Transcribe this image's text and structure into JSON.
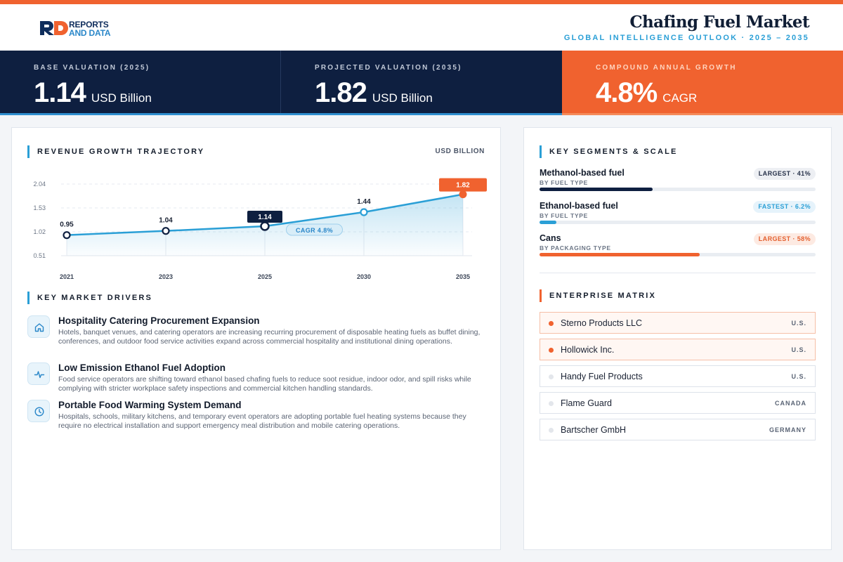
{
  "brand": {
    "line1": "REPORTS",
    "line2": "AND DATA"
  },
  "header": {
    "title": "Chafing Fuel Market",
    "subtitle": "GLOBAL INTELLIGENCE OUTLOOK · 2025 – 2035"
  },
  "kpis": [
    {
      "label": "BASE VALUATION (2025)",
      "value": "1.14",
      "unit": "USD Billion"
    },
    {
      "label": "PROJECTED VALUATION (2035)",
      "value": "1.82",
      "unit": "USD Billion"
    },
    {
      "label": "COMPOUND ANNUAL GROWTH",
      "value": "4.8%",
      "unit": "CAGR"
    }
  ],
  "colors": {
    "accent_orange": "#f0622f",
    "accent_blue": "#2a9fd6",
    "navy": "#0e1f40"
  },
  "revenue": {
    "title": "REVENUE GROWTH TRAJECTORY",
    "unit": "USD BILLION"
  },
  "chart_data": {
    "type": "area",
    "title": "REVENUE GROWTH TRAJECTORY",
    "ylabel": "USD BILLION",
    "x": [
      "2021",
      "2023",
      "2025",
      "2030",
      "2035"
    ],
    "series": [
      {
        "values": [
          0.95,
          1.04,
          1.14,
          1.44,
          1.82
        ]
      }
    ],
    "labels": [
      "0.95",
      "1.04",
      "1.14",
      "1.44",
      "1.82"
    ],
    "yticks": [
      0.51,
      1.02,
      1.53,
      2.04
    ],
    "ytick_labels": [
      "0.51",
      "1.02",
      "1.53",
      "2.04"
    ],
    "ylim": [
      0.51,
      2.04
    ],
    "grid": true,
    "highlight": {
      "base_year": "2025",
      "forecast_year": "2035"
    },
    "annotation": "CAGR 4.8%"
  },
  "drivers": {
    "title": "KEY MARKET DRIVERS",
    "items": [
      {
        "icon": "home-icon",
        "title": "Hospitality Catering Procurement Expansion",
        "body": "Hotels, banquet venues, and catering operators are increasing recurring procurement of disposable heating fuels as buffet dining, conferences, and outdoor food service activities expand across commercial hospitality and institutional dining operations."
      },
      {
        "icon": "pulse-icon",
        "title": "Low Emission Ethanol Fuel Adoption",
        "body": "Food service operators are shifting toward ethanol based chafing fuels to reduce soot residue, indoor odor, and spill risks while complying with stricter workplace safety inspections and commercial kitchen handling standards."
      },
      {
        "icon": "clock-icon",
        "title": "Portable Food Warming System Demand",
        "body": "Hospitals, schools, military kitchens, and temporary event operators are adopting portable fuel heating systems because they require no electrical installation and support emergency meal distribution and mobile catering operations."
      }
    ]
  },
  "segments": {
    "title": "KEY SEGMENTS & SCALE",
    "items": [
      {
        "name": "Methanol-based fuel",
        "type": "BY FUEL TYPE",
        "badge": "LARGEST · 41%",
        "share": 0.41,
        "color": "#0e1f40"
      },
      {
        "name": "Ethanol-based fuel",
        "type": "BY FUEL TYPE",
        "badge": "FASTEST · 6.2%",
        "share": 0.062,
        "color": "#2a9fd6"
      },
      {
        "name": "Cans",
        "type": "BY PACKAGING TYPE",
        "badge": "LARGEST · 58%",
        "share": 0.58,
        "color": "#f0622f"
      }
    ]
  },
  "enterprise": {
    "title": "ENTERPRISE MATRIX",
    "items": [
      {
        "name": "Sterno Products LLC",
        "country": "U.S."
      },
      {
        "name": "Hollowick Inc.",
        "country": "U.S."
      },
      {
        "name": "Handy Fuel Products",
        "country": "U.S."
      },
      {
        "name": "Flame Guard",
        "country": "CANADA"
      },
      {
        "name": "Bartscher GmbH",
        "country": "GERMANY"
      }
    ]
  }
}
